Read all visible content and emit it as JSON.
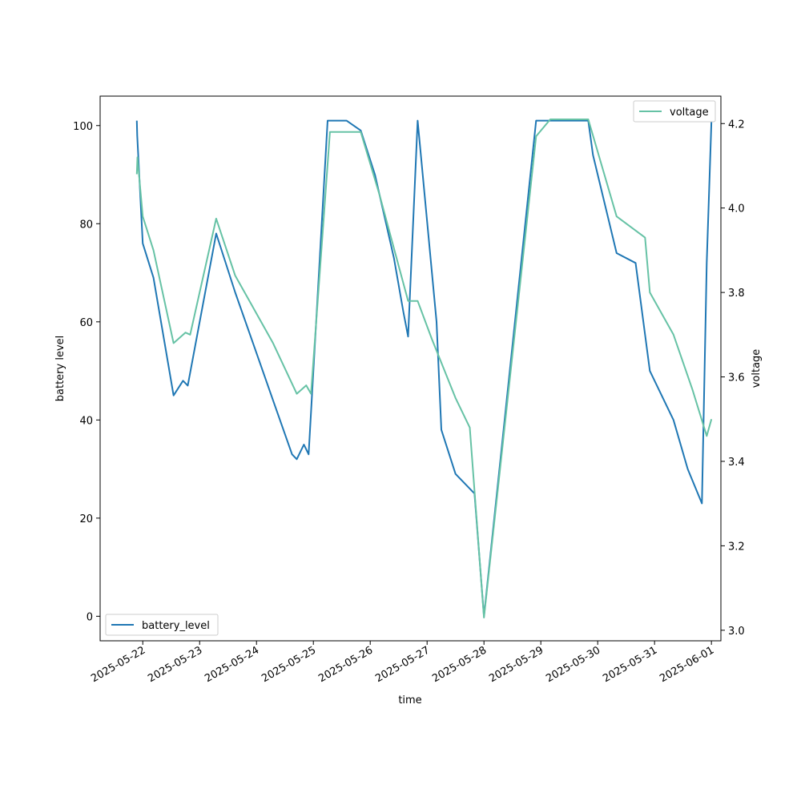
{
  "chart_data": {
    "type": "line",
    "title": "",
    "xlabel": "time",
    "ylabel_left": "battery level",
    "ylabel_right": "voltage",
    "x_ticks": [
      "2025-05-22",
      "2025-05-23",
      "2025-05-24",
      "2025-05-25",
      "2025-05-26",
      "2025-05-27",
      "2025-05-28",
      "2025-05-29",
      "2025-05-30",
      "2025-05-31",
      "2025-06-01"
    ],
    "xlim": [
      "2025-05-21T06:00",
      "2025-06-01T04:00"
    ],
    "ylim_left": [
      -5,
      106
    ],
    "ylim_right": [
      2.975,
      4.265
    ],
    "yticks_left": [
      0,
      20,
      40,
      60,
      80,
      100
    ],
    "yticks_right": [
      3.0,
      3.2,
      3.4,
      3.6,
      3.8,
      4.0,
      4.2
    ],
    "grid": false,
    "legend_left_position": "lower-left",
    "legend_right_position": "upper-right",
    "series": [
      {
        "name": "battery_level",
        "axis": "left",
        "color": "#1f77b4",
        "points": [
          [
            "2025-05-21T21:30",
            101
          ],
          [
            "2025-05-21T21:40",
            98
          ],
          [
            "2025-05-22T00:00",
            76
          ],
          [
            "2025-05-22T04:30",
            69
          ],
          [
            "2025-05-22T13:00",
            45
          ],
          [
            "2025-05-22T17:00",
            48
          ],
          [
            "2025-05-22T19:00",
            47
          ],
          [
            "2025-05-23T07:00",
            78
          ],
          [
            "2025-05-23T15:00",
            66
          ],
          [
            "2025-05-23T23:00",
            55
          ],
          [
            "2025-05-24T07:00",
            44
          ],
          [
            "2025-05-24T15:00",
            33
          ],
          [
            "2025-05-24T17:00",
            32
          ],
          [
            "2025-05-24T20:00",
            35
          ],
          [
            "2025-05-24T22:00",
            33
          ],
          [
            "2025-05-25T06:00",
            101
          ],
          [
            "2025-05-25T14:00",
            101
          ],
          [
            "2025-05-25T20:00",
            99
          ],
          [
            "2025-05-26T02:00",
            90
          ],
          [
            "2025-05-26T10:00",
            73
          ],
          [
            "2025-05-26T14:00",
            62
          ],
          [
            "2025-05-26T16:00",
            57
          ],
          [
            "2025-05-26T20:00",
            101
          ],
          [
            "2025-05-27T04:00",
            60
          ],
          [
            "2025-05-27T06:00",
            38
          ],
          [
            "2025-05-27T12:00",
            29
          ],
          [
            "2025-05-27T20:00",
            25
          ],
          [
            "2025-05-28T00:00",
            0
          ],
          [
            "2025-05-28T22:00",
            101
          ],
          [
            "2025-05-29T20:00",
            101
          ],
          [
            "2025-05-29T22:00",
            94
          ],
          [
            "2025-05-30T08:00",
            74
          ],
          [
            "2025-05-30T16:00",
            72
          ],
          [
            "2025-05-30T22:00",
            50
          ],
          [
            "2025-05-31T08:00",
            40
          ],
          [
            "2025-05-31T14:00",
            30
          ],
          [
            "2025-05-31T20:00",
            23
          ],
          [
            "2025-05-31T22:00",
            72
          ],
          [
            "2025-06-01T00:00",
            101
          ]
        ]
      },
      {
        "name": "voltage",
        "axis": "right",
        "color": "#66c2a5",
        "points": [
          [
            "2025-05-21T21:30",
            4.08
          ],
          [
            "2025-05-21T21:45",
            4.12
          ],
          [
            "2025-05-22T00:00",
            3.98
          ],
          [
            "2025-05-22T04:30",
            3.9
          ],
          [
            "2025-05-22T13:00",
            3.68
          ],
          [
            "2025-05-22T18:00",
            3.705
          ],
          [
            "2025-05-22T20:00",
            3.7
          ],
          [
            "2025-05-23T07:00",
            3.975
          ],
          [
            "2025-05-23T15:00",
            3.84
          ],
          [
            "2025-05-23T23:00",
            3.76
          ],
          [
            "2025-05-24T07:00",
            3.68
          ],
          [
            "2025-05-24T17:00",
            3.56
          ],
          [
            "2025-05-24T21:00",
            3.58
          ],
          [
            "2025-05-24T23:00",
            3.56
          ],
          [
            "2025-05-25T07:00",
            4.18
          ],
          [
            "2025-05-25T11:00",
            4.18
          ],
          [
            "2025-05-25T20:00",
            4.18
          ],
          [
            "2025-05-26T04:00",
            4.03
          ],
          [
            "2025-05-26T16:00",
            3.78
          ],
          [
            "2025-05-26T20:00",
            3.78
          ],
          [
            "2025-05-27T02:00",
            3.69
          ],
          [
            "2025-05-27T12:00",
            3.55
          ],
          [
            "2025-05-27T18:00",
            3.48
          ],
          [
            "2025-05-28T00:00",
            3.03
          ],
          [
            "2025-05-28T22:00",
            4.17
          ],
          [
            "2025-05-29T04:00",
            4.21
          ],
          [
            "2025-05-29T20:00",
            4.21
          ],
          [
            "2025-05-30T08:00",
            3.98
          ],
          [
            "2025-05-30T20:00",
            3.93
          ],
          [
            "2025-05-30T22:00",
            3.8
          ],
          [
            "2025-05-31T08:00",
            3.7
          ],
          [
            "2025-05-31T16:00",
            3.57
          ],
          [
            "2025-05-31T22:00",
            3.46
          ],
          [
            "2025-06-01T00:00",
            3.5
          ]
        ]
      }
    ]
  }
}
